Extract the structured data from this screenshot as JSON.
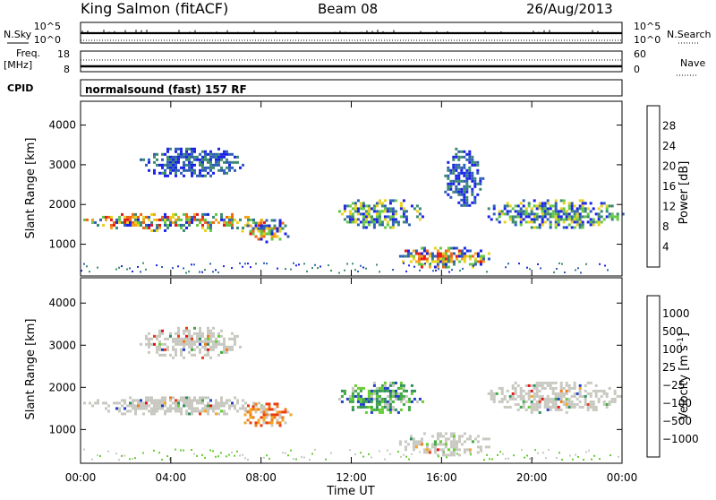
{
  "header": {
    "station": "King Salmon (fitACF)",
    "beam": "Beam 08",
    "date": "26/Aug/2013"
  },
  "scan_panels": {
    "nsky_label": "N.Sky",
    "nsky_ticks": [
      "10^5",
      "10^0"
    ],
    "nsearch_label": "N.Search",
    "nsearch_ticks": [
      "10^5",
      "10^0"
    ],
    "freq_label": "Freq.",
    "freq_unit": "[MHz]",
    "freq_ticks": [
      "18",
      "8"
    ],
    "nave_label": "Nave",
    "nave_ticks": [
      "60",
      "0"
    ],
    "cpid_label": "CPID",
    "cpid_text": "normalsound (fast) 157 RF"
  },
  "chart_data": [
    {
      "type": "heatmap",
      "panel": "power",
      "ylabel": "Slant Range [km]",
      "xlabel": "Time UT",
      "x_ticks": [
        "00:00",
        "04:00",
        "08:00",
        "12:00",
        "16:00",
        "20:00",
        "00:00"
      ],
      "xlim_hours": [
        0,
        24
      ],
      "ylim": [
        200,
        4600
      ],
      "y_ticks": [
        1000,
        2000,
        3000,
        4000
      ],
      "colorbar": {
        "label": "Power [dB]",
        "ticks": [
          "4",
          "8",
          "12",
          "16",
          "20",
          "24",
          "28"
        ],
        "colors": [
          "#1a22e8",
          "#2f5fb8",
          "#3b8a6e",
          "#63c844",
          "#e8d21e",
          "#f3a21a",
          "#ef6414",
          "#e51919"
        ]
      },
      "echo_regions": [
        {
          "t": [
            0.0,
            8.2
          ],
          "range": [
            1350,
            1850
          ],
          "level": "high"
        },
        {
          "t": [
            7.0,
            9.3
          ],
          "range": [
            1050,
            1700
          ],
          "level": "high"
        },
        {
          "t": [
            2.5,
            7.2
          ],
          "range": [
            2700,
            3500
          ],
          "level": "low"
        },
        {
          "t": [
            11.3,
            15.2
          ],
          "range": [
            1400,
            2200
          ],
          "level": "mid"
        },
        {
          "t": [
            14.0,
            18.2
          ],
          "range": [
            400,
            1000
          ],
          "level": "high"
        },
        {
          "t": [
            16.0,
            17.8
          ],
          "range": [
            1900,
            3500
          ],
          "level": "low"
        },
        {
          "t": [
            17.8,
            24.0
          ],
          "range": [
            1400,
            2200
          ],
          "level": "mid"
        }
      ]
    },
    {
      "type": "heatmap",
      "panel": "velocity",
      "ylabel": "Slant Range [km]",
      "xlabel": "Time UT",
      "x_ticks": [
        "00:00",
        "04:00",
        "08:00",
        "12:00",
        "16:00",
        "20:00",
        "00:00"
      ],
      "xlim_hours": [
        0,
        24
      ],
      "ylim": [
        200,
        4600
      ],
      "y_ticks": [
        1000,
        2000,
        3000,
        4000
      ],
      "colorbar": {
        "label": "Velocity [m s",
        "label_sup": "-1",
        "label_close": "]",
        "ticks": [
          "1000",
          "500",
          "100",
          "25",
          "−25",
          "−100",
          "−500",
          "−1000"
        ],
        "colors": [
          "#1f3fc8",
          "#2f8f5f",
          "#3faa40",
          "#66cc33",
          "#c8c8c0",
          "#f5a623",
          "#ef7a14",
          "#ea3c10",
          "#e51010"
        ]
      },
      "echo_regions": [
        {
          "t": [
            0.0,
            8.2
          ],
          "range": [
            1350,
            1850
          ],
          "level": "gray"
        },
        {
          "t": [
            7.0,
            9.3
          ],
          "range": [
            1050,
            1700
          ],
          "level": "negative"
        },
        {
          "t": [
            2.5,
            7.2
          ],
          "range": [
            2700,
            3500
          ],
          "level": "gray"
        },
        {
          "t": [
            11.3,
            15.2
          ],
          "range": [
            1400,
            2200
          ],
          "level": "positive"
        },
        {
          "t": [
            14.0,
            18.2
          ],
          "range": [
            400,
            1000
          ],
          "level": "gray"
        },
        {
          "t": [
            17.8,
            24.0
          ],
          "range": [
            1400,
            2200
          ],
          "level": "gray"
        }
      ]
    }
  ]
}
